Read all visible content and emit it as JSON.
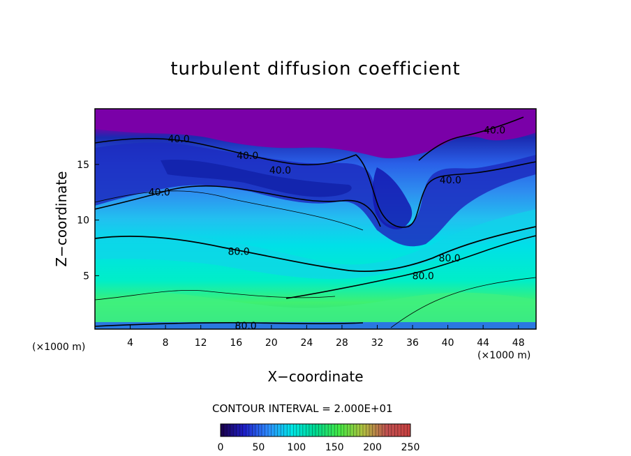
{
  "chart_data": {
    "type": "heatmap",
    "title": "turbulent diffusion coefficient",
    "xlabel": "X−coordinate",
    "ylabel": "Z−coordinate",
    "x_unit_label": "(×1000 m)",
    "xlim": [
      0,
      50
    ],
    "ylim": [
      0.2,
      20
    ],
    "x_ticks": [
      4,
      8,
      12,
      16,
      20,
      24,
      28,
      32,
      36,
      40,
      44,
      48
    ],
    "y_ticks": [
      5,
      10,
      15
    ],
    "contour_interval_text": "CONTOUR INTERVAL = 2.000E+01",
    "contour_interval": 20,
    "contour_labels": [
      {
        "text": "40.0",
        "x": 9.5,
        "y": 17.3
      },
      {
        "text": "40.0",
        "x": 17.3,
        "y": 15.8
      },
      {
        "text": "40.0",
        "x": 21,
        "y": 14.5
      },
      {
        "text": "40.0",
        "x": 7.3,
        "y": 12.5
      },
      {
        "text": "40.0",
        "x": 40.3,
        "y": 13.6
      },
      {
        "text": "40.0",
        "x": 45.3,
        "y": 18.1
      },
      {
        "text": "80.0",
        "x": 16.3,
        "y": 7.2
      },
      {
        "text": "80.0",
        "x": 37.2,
        "y": 5.0
      },
      {
        "text": "80.0",
        "x": 40.2,
        "y": 6.6
      },
      {
        "text": "80.0",
        "x": 17.1,
        "y": 0.5
      }
    ],
    "colorbar": {
      "min": 0,
      "max": 250,
      "ticks": [
        0,
        50,
        100,
        150,
        200,
        250
      ],
      "colors": [
        "#1a0047",
        "#1f1fc8",
        "#2d8cff",
        "#00e6e6",
        "#00d890",
        "#44e844",
        "#b0c040",
        "#c05050",
        "#c84040"
      ]
    },
    "field_description_regions": {
      "top_band_value": "< 20",
      "upper_layer_value": "20-60",
      "middle_layer_value": "60-100",
      "lower_layer_value": "100-140"
    }
  }
}
